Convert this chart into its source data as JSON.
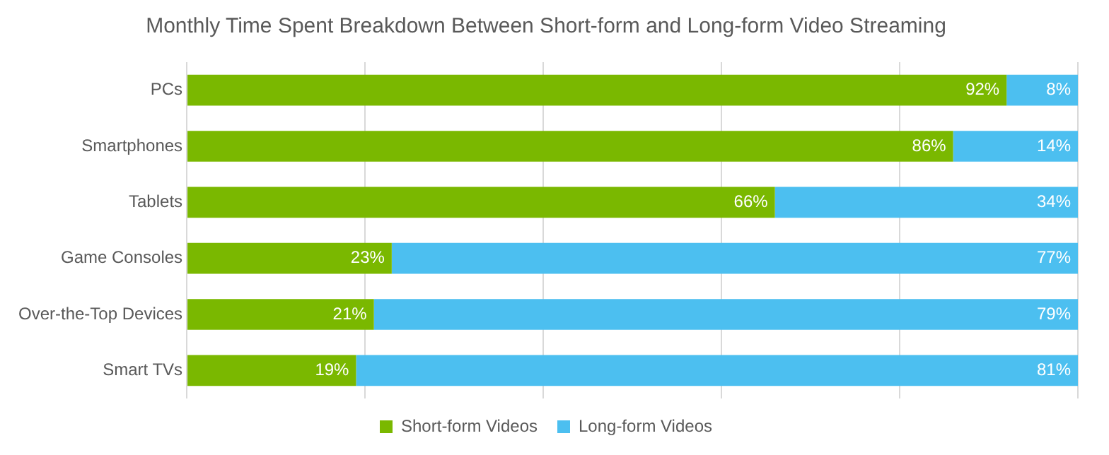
{
  "chart_data": {
    "type": "bar",
    "orientation": "horizontal",
    "stacked": true,
    "title": "Monthly Time Spent Breakdown Between Short-form and Long-form Video Streaming",
    "categories": [
      "PCs",
      "Smartphones",
      "Tablets",
      "Game Consoles",
      "Over-the-Top Devices",
      "Smart TVs"
    ],
    "series": [
      {
        "name": "Short-form Videos",
        "color": "#7ab800",
        "values": [
          92,
          86,
          66,
          23,
          21,
          19
        ],
        "value_labels": [
          "92%",
          "86%",
          "66%",
          "23%",
          "21%",
          "19%"
        ]
      },
      {
        "name": "Long-form Videos",
        "color": "#4cbff0",
        "values": [
          8,
          14,
          34,
          77,
          79,
          81
        ],
        "value_labels": [
          "8%",
          "14%",
          "34%",
          "77%",
          "79%",
          "81%"
        ]
      }
    ],
    "xlim": [
      0,
      100
    ],
    "xticks": [
      {
        "value": 0,
        "label": null
      },
      {
        "value": 20,
        "label": null
      },
      {
        "value": 40,
        "label": null
      },
      {
        "value": 60,
        "label": null
      },
      {
        "value": 80,
        "label": null
      },
      {
        "value": 100,
        "label": null
      }
    ],
    "tick_labels": "y",
    "grid": "x",
    "legend": "bottom"
  }
}
